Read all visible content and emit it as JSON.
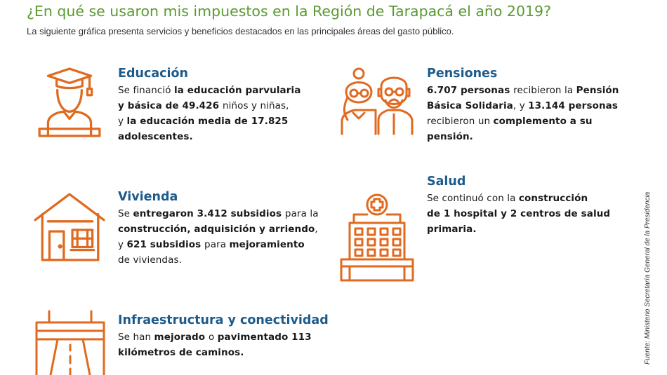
{
  "header": {
    "title": "¿En qué se usaron mis impuestos en la Región de Tarapacá el año 2019?",
    "subtitle": "La siguiente gráfica presenta servicios y beneficios destacados en las principales áreas del gasto público."
  },
  "sections": {
    "educacion": {
      "title": "Educación",
      "icon": "graduate-icon",
      "lines": [
        [
          {
            "t": "Se financió ",
            "b": false
          },
          {
            "t": "la educación parvularia",
            "b": true
          }
        ],
        [
          {
            "t": "y básica de 49.426 ",
            "b": true
          },
          {
            "t": "niños y niñas,",
            "b": false
          }
        ],
        [
          {
            "t": "y ",
            "b": false
          },
          {
            "t": "la educación media de 17.825",
            "b": true
          }
        ],
        [
          {
            "t": "adolescentes.",
            "b": true
          }
        ]
      ]
    },
    "pensiones": {
      "title": "Pensiones",
      "icon": "elderly-couple-icon",
      "lines": [
        [
          {
            "t": "6.707 personas ",
            "b": true
          },
          {
            "t": "recibieron la ",
            "b": false
          },
          {
            "t": "Pensión",
            "b": true
          }
        ],
        [
          {
            "t": "Básica Solidaria",
            "b": true
          },
          {
            "t": ", y ",
            "b": false
          },
          {
            "t": "13.144 personas",
            "b": true
          }
        ],
        [
          {
            "t": "recibieron un ",
            "b": false
          },
          {
            "t": "complemento a su",
            "b": true
          }
        ],
        [
          {
            "t": "pensión.",
            "b": true
          }
        ]
      ]
    },
    "vivienda": {
      "title": "Vivienda",
      "icon": "house-icon",
      "lines": [
        [
          {
            "t": "Se ",
            "b": false
          },
          {
            "t": "entregaron 3.412 subsidios ",
            "b": true
          },
          {
            "t": "para la",
            "b": false
          }
        ],
        [
          {
            "t": "construcción, adquisición y arriendo",
            "b": true
          },
          {
            "t": ",",
            "b": false
          }
        ],
        [
          {
            "t": "y ",
            "b": false
          },
          {
            "t": "621 subsidios ",
            "b": true
          },
          {
            "t": "para ",
            "b": false
          },
          {
            "t": "mejoramiento",
            "b": true
          }
        ],
        [
          {
            "t": "de viviendas.",
            "b": false
          }
        ]
      ]
    },
    "salud": {
      "title": "Salud",
      "icon": "hospital-icon",
      "lines": [
        [
          {
            "t": "Se continuó con la ",
            "b": false
          },
          {
            "t": "construcción",
            "b": true
          }
        ],
        [
          {
            "t": "de 1 hospital y 2 centros de salud",
            "b": true
          }
        ],
        [
          {
            "t": "primaria.",
            "b": true
          }
        ]
      ]
    },
    "infraestructura": {
      "title": "Infraestructura y conectividad",
      "icon": "road-bridge-icon",
      "lines": [
        [
          {
            "t": "Se han ",
            "b": false
          },
          {
            "t": "mejorado ",
            "b": true
          },
          {
            "t": "o ",
            "b": false
          },
          {
            "t": "pavimentado 113",
            "b": true
          }
        ],
        [
          {
            "t": "kilómetros de caminos.",
            "b": true
          }
        ]
      ]
    }
  },
  "source": "Fuente: Ministerio Secretaría General de la Presidencia",
  "colors": {
    "accent": "#e06a1f",
    "title_green": "#5a9a32",
    "heading_blue": "#1d5b8c"
  }
}
